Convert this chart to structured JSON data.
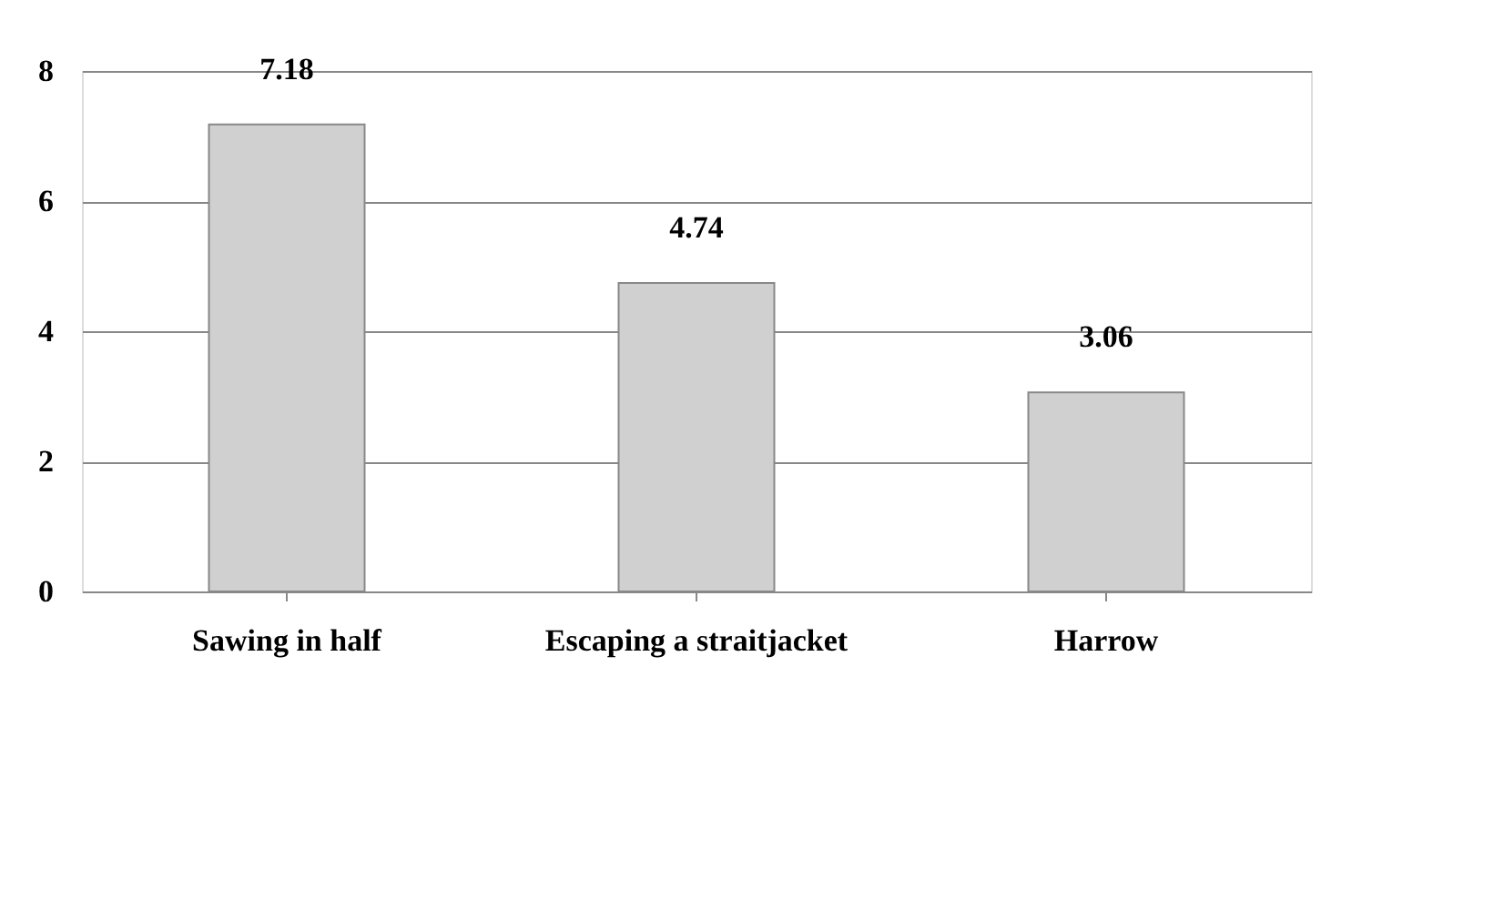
{
  "chart_data": {
    "type": "bar",
    "categories": [
      "Sawing  in half",
      "Escaping a straitjacket",
      "Harrow"
    ],
    "values": [
      7.18,
      4.74,
      3.06
    ],
    "color": "#d0d0d0",
    "ylim": [
      0,
      8
    ],
    "yticks": [
      0,
      2,
      4,
      6,
      8
    ],
    "grid": "y",
    "data_labels": true
  }
}
